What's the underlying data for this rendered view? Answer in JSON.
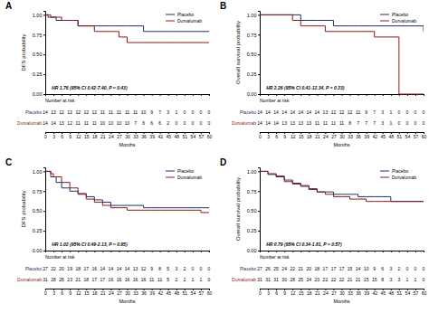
{
  "chart_data": [
    {
      "type": "step",
      "title": "A",
      "ylabel": "DFS probability",
      "xlabel": "Months",
      "annotations": [
        "HR 1.76 (95% CI 0.42-7.40, P = 0.43)"
      ],
      "risk_table_title": "Number at risk",
      "xlim": [
        0,
        60
      ],
      "xticks": [
        0,
        3,
        6,
        9,
        12,
        15,
        18,
        21,
        24,
        27,
        30,
        33,
        36,
        39,
        42,
        45,
        48,
        51,
        54,
        57,
        60
      ],
      "ylim": [
        0,
        1.05
      ],
      "yticks": [
        {
          "value": 0,
          "label": "0.00"
        },
        {
          "value": 0.25,
          "label": "0.25"
        },
        {
          "value": 0.5,
          "label": "0.50"
        },
        {
          "value": 0.75,
          "label": "0.75"
        },
        {
          "value": 1,
          "label": "1.00"
        }
      ],
      "grid": false,
      "legend": "upper right",
      "series": [
        {
          "name": "Placebo",
          "color": "#1F2F6B",
          "x": [
            0,
            1,
            4,
            12,
            18,
            24,
            30,
            36,
            42,
            48,
            60
          ],
          "values": [
            1.0,
            0.97,
            0.93,
            0.86,
            0.86,
            0.86,
            0.86,
            0.79,
            0.79,
            0.79,
            0.79
          ],
          "at_risk": [
            14,
            13,
            12,
            12,
            12,
            12,
            12,
            11,
            11,
            11,
            11,
            11,
            10,
            9,
            7,
            3,
            1,
            0,
            0,
            0,
            0
          ]
        },
        {
          "name": "Durvalumab",
          "color": "#8B1A1A",
          "x": [
            0,
            2,
            6,
            12,
            18,
            24,
            27,
            30,
            33,
            36,
            42,
            48,
            60
          ],
          "values": [
            1.0,
            0.97,
            0.93,
            0.86,
            0.79,
            0.79,
            0.72,
            0.65,
            0.65,
            0.65,
            0.65,
            0.65,
            0.65
          ],
          "at_risk": [
            14,
            14,
            13,
            12,
            11,
            11,
            11,
            10,
            10,
            10,
            10,
            7,
            6,
            6,
            6,
            2,
            0,
            0,
            0,
            0,
            0
          ]
        }
      ]
    },
    {
      "type": "step",
      "title": "B",
      "ylabel": "Overall survival probability",
      "xlabel": "Months",
      "annotations": [
        "HR 2.26 (95% CI 0.41-12.34, P = 0.33)"
      ],
      "risk_table_title": "Number at risk",
      "xlim": [
        0,
        60
      ],
      "xticks": [
        0,
        3,
        6,
        9,
        12,
        15,
        18,
        21,
        24,
        27,
        30,
        33,
        36,
        39,
        42,
        45,
        48,
        51,
        54,
        57,
        60
      ],
      "ylim": [
        0,
        1.05
      ],
      "yticks": [
        {
          "value": 0,
          "label": "0.00"
        },
        {
          "value": 0.25,
          "label": "0.25"
        },
        {
          "value": 0.5,
          "label": "0.50"
        },
        {
          "value": 0.75,
          "label": "0.75"
        },
        {
          "value": 1,
          "label": "1.00"
        }
      ],
      "grid": false,
      "legend": "upper right",
      "series": [
        {
          "name": "Placebo",
          "color": "#1F2F6B",
          "x": [
            0,
            9,
            15,
            21,
            27,
            33,
            36,
            42,
            48,
            60
          ],
          "values": [
            1.0,
            1.0,
            0.93,
            0.93,
            0.86,
            0.86,
            0.86,
            0.86,
            0.86,
            0.79
          ],
          "at_risk": [
            14,
            14,
            14,
            14,
            14,
            14,
            14,
            14,
            13,
            12,
            12,
            12,
            11,
            9,
            7,
            3,
            1,
            0,
            0,
            0,
            0
          ]
        },
        {
          "name": "Durvalumab",
          "color": "#8B1A1A",
          "x": [
            0,
            6,
            12,
            15,
            18,
            24,
            27,
            30,
            33,
            36,
            39,
            42,
            45,
            48,
            51,
            60
          ],
          "values": [
            1.0,
            1.0,
            0.93,
            0.86,
            0.86,
            0.79,
            0.79,
            0.79,
            0.79,
            0.79,
            0.79,
            0.72,
            0.72,
            0.72,
            0.0,
            0.0
          ],
          "at_risk": [
            14,
            14,
            14,
            13,
            13,
            13,
            13,
            11,
            11,
            11,
            11,
            8,
            7,
            7,
            7,
            3,
            1,
            0,
            0,
            0,
            0
          ]
        }
      ]
    },
    {
      "type": "step",
      "title": "C",
      "ylabel": "DFS probability",
      "xlabel": "Months",
      "annotations": [
        "HR 1.02 (95% CI 0.49-2.13, P = 0.95)"
      ],
      "risk_table_title": "Number at risk",
      "xlim": [
        0,
        60
      ],
      "xticks": [
        0,
        3,
        6,
        9,
        12,
        15,
        18,
        21,
        24,
        27,
        30,
        33,
        36,
        39,
        42,
        45,
        48,
        51,
        54,
        57,
        60
      ],
      "ylim": [
        0,
        1.05
      ],
      "yticks": [
        {
          "value": 0,
          "label": "0.00"
        },
        {
          "value": 0.25,
          "label": "0.25"
        },
        {
          "value": 0.5,
          "label": "0.50"
        },
        {
          "value": 0.75,
          "label": "0.75"
        },
        {
          "value": 1,
          "label": "1.00"
        }
      ],
      "grid": false,
      "legend": "upper right",
      "series": [
        {
          "name": "Placebo",
          "color": "#1F2F6B",
          "x": [
            0,
            2,
            4,
            6,
            9,
            12,
            15,
            18,
            21,
            24,
            27,
            30,
            33,
            36,
            39,
            42,
            45,
            48,
            51,
            57,
            60
          ],
          "values": [
            1.0,
            0.93,
            0.86,
            0.79,
            0.75,
            0.71,
            0.68,
            0.64,
            0.61,
            0.57,
            0.57,
            0.57,
            0.57,
            0.54,
            0.54,
            0.54,
            0.54,
            0.54,
            0.54,
            0.54,
            0.54
          ],
          "at_risk": [
            27,
            22,
            20,
            19,
            18,
            17,
            16,
            14,
            14,
            14,
            14,
            13,
            12,
            9,
            8,
            5,
            3,
            2,
            0,
            0,
            0
          ]
        },
        {
          "name": "Durvalumab",
          "color": "#8B1A1A",
          "x": [
            0,
            2,
            3,
            6,
            9,
            12,
            15,
            18,
            21,
            24,
            27,
            30,
            33,
            36,
            39,
            42,
            45,
            48,
            51,
            57,
            60
          ],
          "values": [
            1.0,
            0.97,
            0.93,
            0.86,
            0.79,
            0.72,
            0.65,
            0.61,
            0.57,
            0.54,
            0.54,
            0.51,
            0.51,
            0.51,
            0.51,
            0.51,
            0.51,
            0.51,
            0.51,
            0.48,
            0.48
          ],
          "at_risk": [
            31,
            28,
            26,
            23,
            21,
            18,
            17,
            17,
            16,
            16,
            16,
            16,
            16,
            11,
            11,
            5,
            2,
            2,
            1,
            1,
            0
          ]
        }
      ]
    },
    {
      "type": "step",
      "title": "D",
      "ylabel": "Overall survival probability",
      "xlabel": "Months",
      "annotations": [
        "HR 0.79 (95% CI 0.34-1.81, P = 0.57)"
      ],
      "risk_table_title": "Number at risk",
      "xlim": [
        0,
        60
      ],
      "xticks": [
        0,
        3,
        6,
        9,
        12,
        15,
        18,
        21,
        24,
        27,
        30,
        33,
        36,
        39,
        42,
        45,
        48,
        51,
        54,
        57,
        60
      ],
      "ylim": [
        0,
        1.05
      ],
      "yticks": [
        {
          "value": 0,
          "label": "0.00"
        },
        {
          "value": 0.25,
          "label": "0.25"
        },
        {
          "value": 0.5,
          "label": "0.50"
        },
        {
          "value": 0.75,
          "label": "0.75"
        },
        {
          "value": 1,
          "label": "1.00"
        }
      ],
      "grid": false,
      "legend": "upper right",
      "series": [
        {
          "name": "Placebo",
          "color": "#1F2F6B",
          "x": [
            0,
            3,
            6,
            9,
            12,
            15,
            18,
            21,
            24,
            27,
            30,
            33,
            36,
            39,
            42,
            45,
            48,
            51,
            54,
            57,
            60
          ],
          "values": [
            1.0,
            0.96,
            0.93,
            0.89,
            0.85,
            0.82,
            0.78,
            0.74,
            0.74,
            0.71,
            0.71,
            0.71,
            0.68,
            0.68,
            0.68,
            0.68,
            0.62,
            0.62,
            0.62,
            0.62,
            0.62
          ],
          "at_risk": [
            27,
            26,
            25,
            24,
            22,
            21,
            20,
            18,
            17,
            17,
            17,
            15,
            14,
            10,
            9,
            6,
            3,
            2,
            0,
            0,
            0
          ]
        },
        {
          "name": "Durvalumab",
          "color": "#8B1A1A",
          "x": [
            0,
            3,
            6,
            9,
            12,
            15,
            18,
            21,
            24,
            27,
            30,
            33,
            36,
            39,
            42,
            45,
            48,
            51,
            54,
            57,
            60
          ],
          "values": [
            1.0,
            0.97,
            0.94,
            0.87,
            0.84,
            0.81,
            0.77,
            0.74,
            0.71,
            0.68,
            0.68,
            0.65,
            0.65,
            0.62,
            0.62,
            0.62,
            0.62,
            0.62,
            0.62,
            0.62,
            0.62
          ],
          "at_risk": [
            31,
            31,
            31,
            30,
            28,
            25,
            24,
            23,
            22,
            22,
            22,
            21,
            21,
            15,
            15,
            8,
            3,
            3,
            1,
            1,
            0
          ]
        }
      ]
    }
  ]
}
